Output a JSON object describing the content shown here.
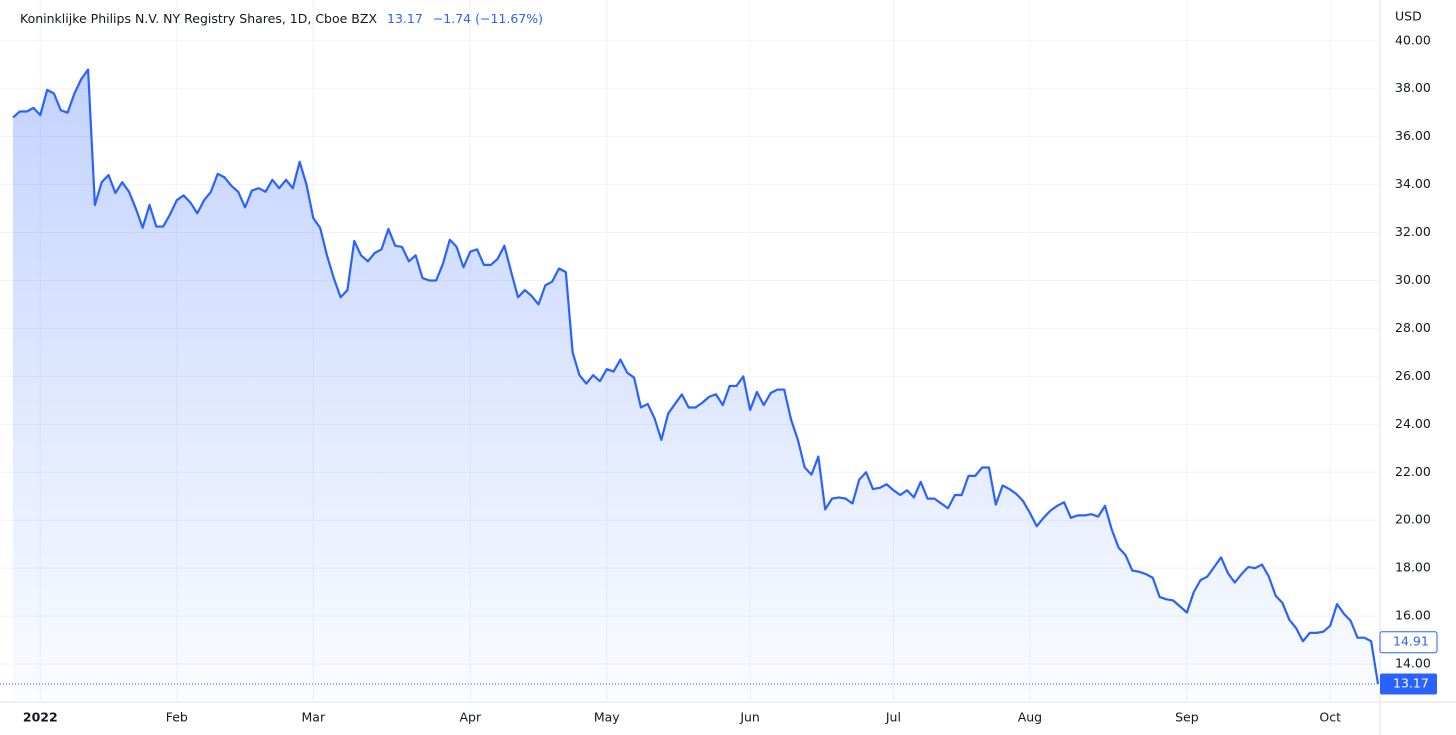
{
  "chart_data": {
    "type": "line",
    "title": "Koninklijke Philips N.V. NY Registry Shares, 1D, Cboe BZX",
    "last_value": 13.17,
    "change_label": "−1.74 (−11.67%)",
    "currency": "USD",
    "prev_close": 14.91,
    "series": [
      {
        "name": "Koninklijke Philips N.V. NY Registry Shares",
        "color": "#2962ff",
        "values": [
          36.8,
          37.05,
          37.05,
          37.2,
          36.9,
          37.95,
          37.8,
          37.1,
          37.0,
          37.8,
          38.4,
          38.8,
          33.15,
          34.1,
          34.4,
          33.65,
          34.1,
          33.7,
          33.0,
          32.2,
          33.15,
          32.25,
          32.25,
          32.75,
          33.35,
          33.55,
          33.25,
          32.8,
          33.35,
          33.7,
          34.45,
          34.3,
          33.95,
          33.7,
          33.05,
          33.75,
          33.85,
          33.7,
          34.2,
          33.85,
          34.2,
          33.85,
          34.95,
          34.0,
          32.6,
          32.2,
          31.05,
          30.1,
          29.3,
          29.6,
          31.65,
          31.05,
          30.8,
          31.15,
          31.3,
          32.15,
          31.45,
          31.4,
          30.8,
          31.05,
          30.1,
          30.0,
          30.0,
          30.7,
          31.7,
          31.4,
          30.55,
          31.2,
          31.3,
          30.65,
          30.65,
          30.9,
          31.45,
          30.35,
          29.3,
          29.6,
          29.35,
          29.0,
          29.8,
          29.95,
          30.5,
          30.35,
          27.0,
          26.05,
          25.7,
          26.05,
          25.8,
          26.3,
          26.2,
          26.7,
          26.15,
          25.95,
          24.7,
          24.85,
          24.25,
          23.35,
          24.45,
          24.85,
          25.25,
          24.7,
          24.7,
          24.9,
          25.15,
          25.25,
          24.8,
          25.6,
          25.6,
          26.0,
          24.6,
          25.35,
          24.8,
          25.3,
          25.45,
          25.45,
          24.2,
          23.35,
          22.2,
          21.9,
          22.65,
          20.45,
          20.9,
          20.95,
          20.9,
          20.7,
          21.7,
          22.0,
          21.3,
          21.35,
          21.5,
          21.25,
          21.05,
          21.25,
          20.95,
          21.6,
          20.9,
          20.9,
          20.7,
          20.5,
          21.05,
          21.05,
          21.85,
          21.85,
          22.2,
          22.2,
          20.65,
          21.45,
          21.3,
          21.1,
          20.8,
          20.3,
          19.75,
          20.1,
          20.4,
          20.6,
          20.75,
          20.1,
          20.2,
          20.2,
          20.25,
          20.15,
          20.6,
          19.6,
          18.85,
          18.55,
          17.9,
          17.85,
          17.75,
          17.6,
          16.8,
          16.7,
          16.65,
          16.4,
          16.15,
          17.0,
          17.5,
          17.65,
          18.05,
          18.45,
          17.8,
          17.4,
          17.75,
          18.05,
          18.0,
          18.15,
          17.65,
          16.85,
          16.55,
          15.85,
          15.5,
          14.95,
          15.3,
          15.3,
          15.35,
          15.6,
          16.5,
          16.1,
          15.8,
          15.1,
          15.1,
          14.95,
          13.17
        ]
      }
    ],
    "xlim": [
      0,
      200
    ],
    "xticks": [
      {
        "value": 4,
        "label": "2022"
      },
      {
        "value": 24,
        "label": "Feb"
      },
      {
        "value": 44,
        "label": "Mar"
      },
      {
        "value": 67,
        "label": "Apr"
      },
      {
        "value": 87,
        "label": "May"
      },
      {
        "value": 108,
        "label": "Jun"
      },
      {
        "value": 129,
        "label": "Jul"
      },
      {
        "value": 149,
        "label": "Aug"
      },
      {
        "value": 172,
        "label": "Sep"
      },
      {
        "value": 193,
        "label": "Oct"
      }
    ],
    "ylim": [
      12.5,
      41.7
    ],
    "yticks": [
      {
        "value": 14,
        "label": "14.00"
      },
      {
        "value": 16,
        "label": "16.00"
      },
      {
        "value": 18,
        "label": "18.00"
      },
      {
        "value": 20,
        "label": "20.00"
      },
      {
        "value": 22,
        "label": "22.00"
      },
      {
        "value": 24,
        "label": "24.00"
      },
      {
        "value": 26,
        "label": "26.00"
      },
      {
        "value": 28,
        "label": "28.00"
      },
      {
        "value": 30,
        "label": "30.00"
      },
      {
        "value": 32,
        "label": "32.00"
      },
      {
        "value": 34,
        "label": "34.00"
      },
      {
        "value": 36,
        "label": "36.00"
      },
      {
        "value": 38,
        "label": "38.00"
      },
      {
        "value": 40,
        "label": "40.00"
      }
    ],
    "grid": true
  }
}
